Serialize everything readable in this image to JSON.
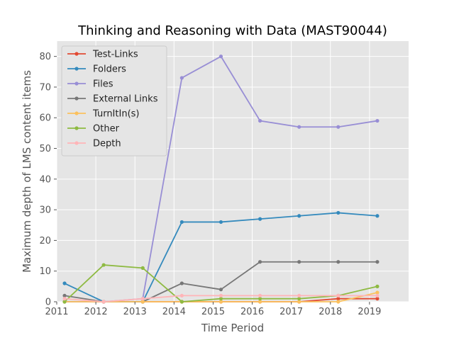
{
  "chart_data": {
    "type": "line",
    "title": "Thinking and Reasoning with Data (MAST90044)",
    "xlabel": "Time Period",
    "ylabel": "Maximum depth of LMS content items",
    "xlim": [
      2011,
      2020
    ],
    "ylim": [
      0,
      85
    ],
    "x_ticks": [
      2011,
      2012,
      2013,
      2014,
      2015,
      2016,
      2017,
      2018,
      2019
    ],
    "y_ticks": [
      0,
      10,
      20,
      30,
      40,
      50,
      60,
      70,
      80
    ],
    "grid": true,
    "legend_position": "upper-left",
    "x": [
      2011.2,
      2012.2,
      2013.2,
      2014.2,
      2015.2,
      2016.2,
      2017.2,
      2018.2,
      2019.2
    ],
    "series": [
      {
        "name": "Test-Links",
        "color": "#E24A33",
        "values": [
          0,
          0,
          0,
          0,
          0,
          0,
          0,
          1,
          1
        ]
      },
      {
        "name": "Folders",
        "color": "#348ABD",
        "values": [
          6,
          0,
          0,
          26,
          26,
          27,
          28,
          29,
          28
        ]
      },
      {
        "name": "Files",
        "color": "#988ED5",
        "values": [
          0,
          0,
          1,
          73,
          80,
          59,
          57,
          57,
          59
        ]
      },
      {
        "name": "External Links",
        "color": "#777777",
        "values": [
          2,
          0,
          0,
          6,
          4,
          13,
          13,
          13,
          13
        ]
      },
      {
        "name": "TurnItIn(s)",
        "color": "#FBC15E",
        "values": [
          0,
          0,
          0,
          0,
          0,
          0,
          0,
          0,
          3
        ]
      },
      {
        "name": "Other",
        "color": "#8EBA42",
        "values": [
          0,
          12,
          11,
          0,
          1,
          1,
          1,
          2,
          5
        ]
      },
      {
        "name": "Depth",
        "color": "#FFB5B8",
        "values": [
          1,
          0,
          1,
          2,
          2,
          2,
          2,
          2,
          2
        ]
      }
    ]
  }
}
